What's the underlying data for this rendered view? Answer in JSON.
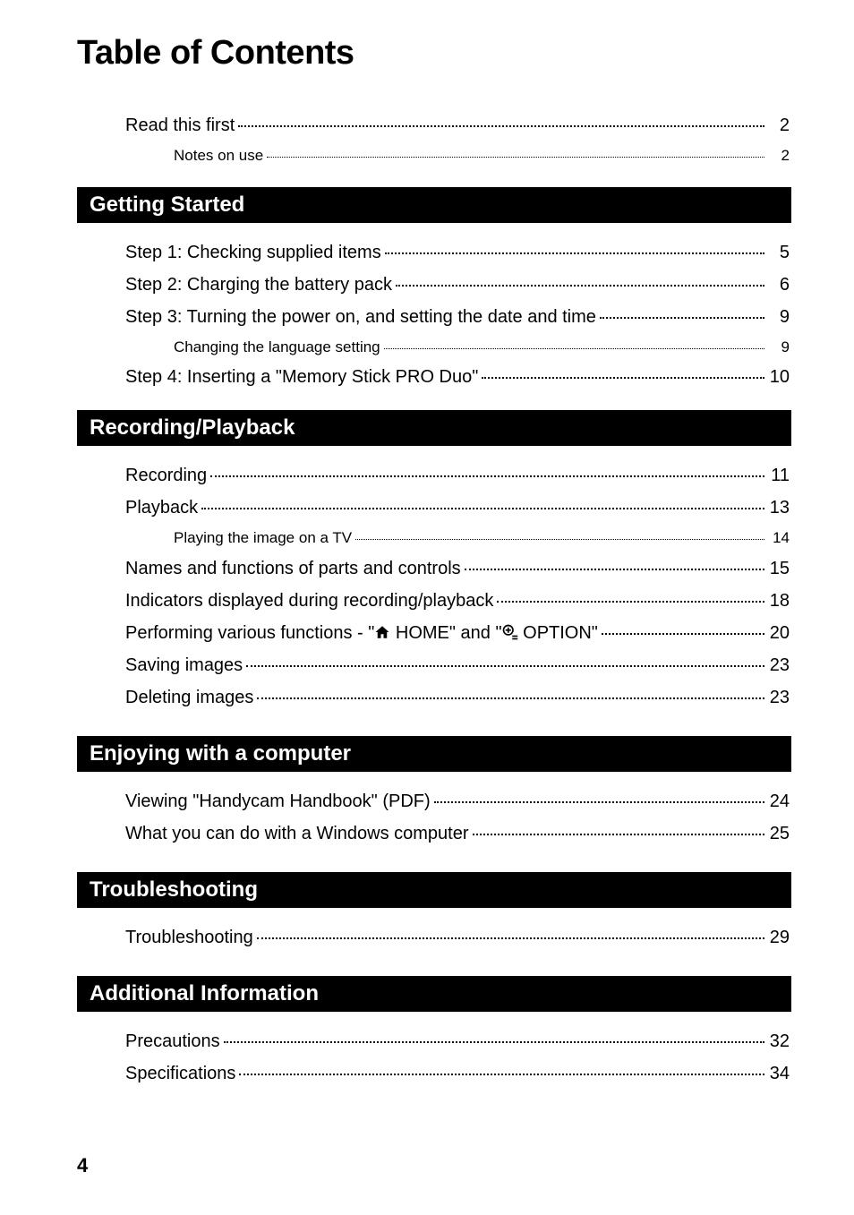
{
  "page_title": "Table of Contents",
  "page_number": "4",
  "sections": [
    {
      "header": null,
      "items": [
        {
          "label": "Read this first",
          "page": "2",
          "level": 0
        },
        {
          "label": "Notes on use",
          "page": "2",
          "level": 1
        }
      ]
    },
    {
      "header": "Getting Started",
      "items": [
        {
          "label": "Step 1: Checking supplied items",
          "page": "5",
          "level": 0
        },
        {
          "label": "Step 2: Charging the battery pack",
          "page": "6",
          "level": 0
        },
        {
          "label": "Step 3: Turning the power on, and setting the date and time",
          "page": "9",
          "level": 0
        },
        {
          "label": "Changing the language setting",
          "page": "9",
          "level": 1
        },
        {
          "label": "Step 4: Inserting a \"Memory Stick PRO Duo\"",
          "page": "10",
          "level": 0
        }
      ]
    },
    {
      "header": "Recording/Playback",
      "items": [
        {
          "label": "Recording",
          "page": "11",
          "level": 0
        },
        {
          "label": "Playback",
          "page": "13",
          "level": 0
        },
        {
          "label": "Playing the image on a TV",
          "page": "14",
          "level": 1
        },
        {
          "label": "Names and functions of parts and controls",
          "page": "15",
          "level": 0
        },
        {
          "label": "Indicators displayed during recording/playback",
          "page": "18",
          "level": 0
        },
        {
          "label_pre": "Performing various functions - \"",
          "icon1": "home",
          "label_mid": " HOME\" and \"",
          "icon2": "option",
          "label_post": " OPTION\"",
          "page": "20",
          "level": 0,
          "has_icons": true
        },
        {
          "label": "Saving images",
          "page": "23",
          "level": 0
        },
        {
          "label": "Deleting images",
          "page": "23",
          "level": 0
        }
      ]
    },
    {
      "header": "Enjoying with a computer",
      "items": [
        {
          "label": "Viewing \"Handycam Handbook\" (PDF)",
          "page": "24",
          "level": 0
        },
        {
          "label": "What you can do with a Windows computer",
          "page": "25",
          "level": 0
        }
      ]
    },
    {
      "header": "Troubleshooting",
      "items": [
        {
          "label": "Troubleshooting",
          "page": "29",
          "level": 0
        }
      ]
    },
    {
      "header": "Additional Information",
      "items": [
        {
          "label": "Precautions",
          "page": "32",
          "level": 0
        },
        {
          "label": "Specifications",
          "page": "34",
          "level": 0
        }
      ]
    }
  ],
  "colors": {
    "background": "#ffffff",
    "text": "#000000",
    "bar_bg": "#000000",
    "bar_text": "#ffffff"
  },
  "fonts": {
    "title_size": 38,
    "bar_size": 24,
    "row_size": 20,
    "subrow_size": 17,
    "pagenum_size": 22
  }
}
